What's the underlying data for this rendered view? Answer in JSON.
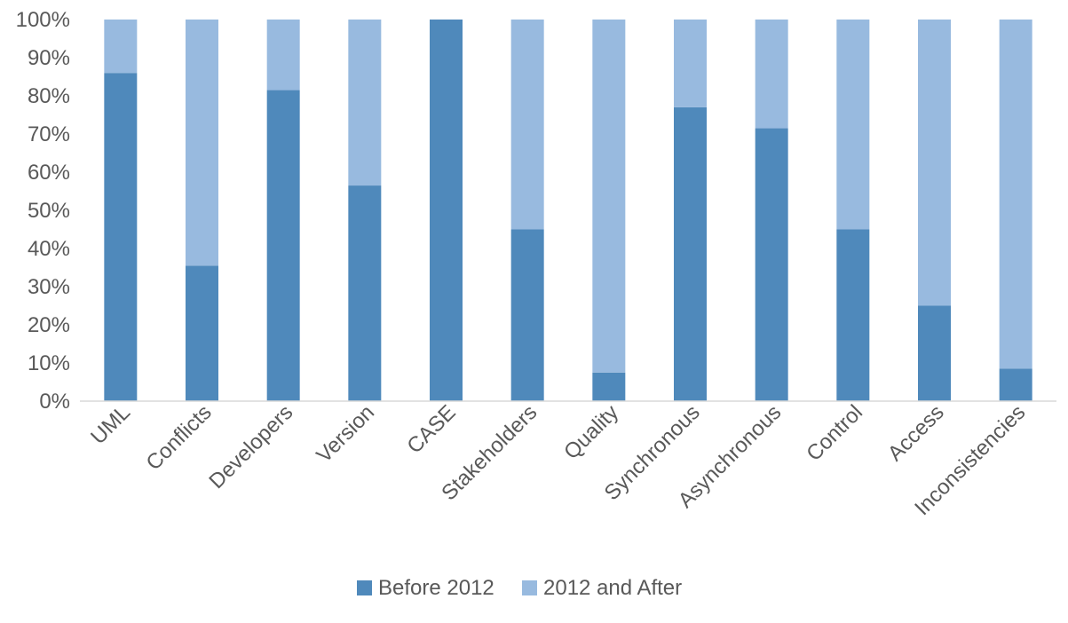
{
  "chart_data": {
    "type": "bar",
    "stacked": true,
    "percent_stacked": true,
    "categories": [
      "UML",
      "Conflicts",
      "Developers",
      "Version",
      "CASE",
      "Stakeholders",
      "Quality",
      "Synchronous",
      "Asynchronous",
      "Control",
      "Access",
      "Inconsistencies"
    ],
    "series": [
      {
        "name": "Before 2012",
        "color": "#4f89bb",
        "values": [
          86,
          35.5,
          81.5,
          56.5,
          100,
          45,
          7.5,
          77,
          71.5,
          45,
          25,
          8.5
        ]
      },
      {
        "name": "2012 and After",
        "color": "#98badf",
        "values": [
          14,
          64.5,
          18.5,
          43.5,
          0,
          55,
          92.5,
          23,
          28.5,
          55,
          75,
          91.5
        ]
      }
    ],
    "y_ticks": [
      "0%",
      "10%",
      "20%",
      "30%",
      "40%",
      "50%",
      "60%",
      "70%",
      "80%",
      "90%",
      "100%"
    ],
    "ylim": [
      0,
      100
    ],
    "title": "",
    "xlabel": "",
    "ylabel": "",
    "grid": false,
    "legend_position": "bottom"
  }
}
